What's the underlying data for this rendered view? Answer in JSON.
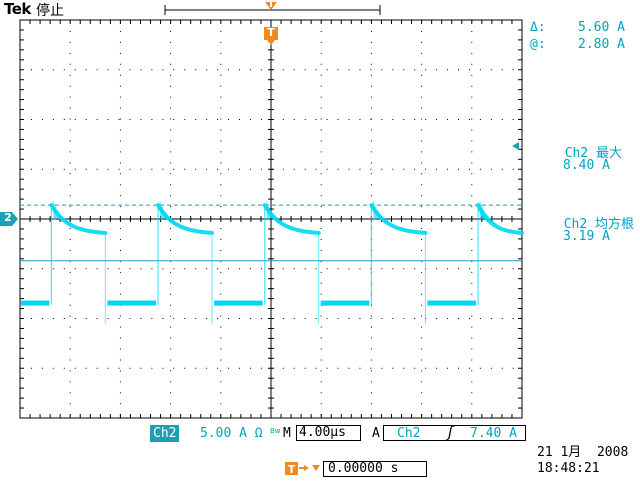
{
  "header": {
    "brand": "Tek",
    "status": "停止"
  },
  "marker": {
    "trigger_letter": "T",
    "channel_label": "2"
  },
  "cursor_readout": {
    "delta_label": "Δ:",
    "delta_value": "5.60 A",
    "at_label": "@:",
    "at_value": "2.80 A"
  },
  "measurements": [
    {
      "title": "Ch2 最大",
      "value": "8.40 A"
    },
    {
      "title": "Ch2 均方根",
      "value": "3.19 A"
    }
  ],
  "status_bar": {
    "channel": "Ch2",
    "scale": "5.00 A Ω",
    "bw_mark": "Bw",
    "time_prefix": "M",
    "timebase": "4.00µs",
    "trigger_mode": "A",
    "trigger_channel": "Ch2",
    "trigger_slope_symbol": "ʃ",
    "trigger_level": "7.40 A",
    "position_value": "0.00000 s",
    "date": "21 1月  2008",
    "time": "18:48:21"
  },
  "colors": {
    "trace": "#00d8f0",
    "grid": "#000000",
    "accent": "#1f9fb3",
    "trigger_marker": "#f08a1e"
  },
  "chart_data": {
    "type": "line",
    "title": "",
    "xlabel": "",
    "ylabel": "",
    "xlim": [
      -20,
      20
    ],
    "ylim": [
      -13,
      27
    ],
    "grid": true,
    "divisions": [
      10,
      8
    ],
    "units": {
      "x": "µs",
      "y": "A"
    },
    "series": [
      {
        "name": "Ch2",
        "period_us": 8.5,
        "pulse_start_offset_us": -17.5,
        "high_peak_A": 8.4,
        "high_end_A": 5.6,
        "high_duration_us": 4.3,
        "low_level_A": -1.2,
        "low_duration_us": 4.2
      }
    ],
    "cursor_lines_A": [
      8.4,
      2.8
    ]
  }
}
